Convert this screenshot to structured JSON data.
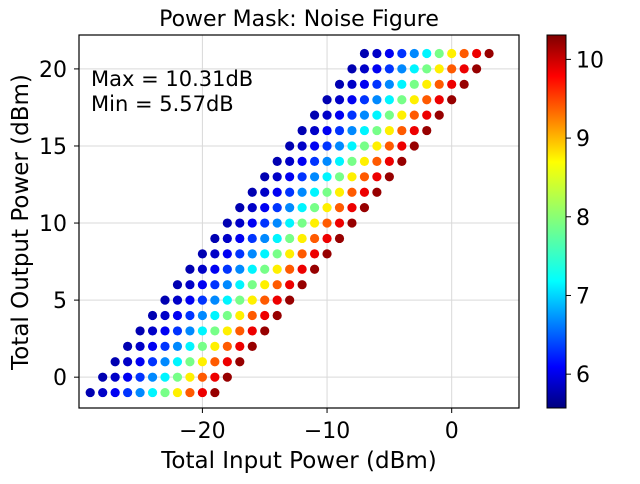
{
  "chart_data": {
    "type": "scatter",
    "title": "Power Mask: Noise Figure",
    "xlabel": "Total Input Power (dBm)",
    "ylabel": "Total Output Power (dBm)",
    "xlim": [
      -29.9,
      5.4
    ],
    "ylim": [
      -2.0,
      22.2
    ],
    "x_ticks": [
      -20,
      -10,
      0
    ],
    "x_tick_labels": [
      "−20",
      "−10",
      "0"
    ],
    "y_ticks": [
      0,
      5,
      10,
      15,
      20
    ],
    "y_tick_labels": [
      "0",
      "5",
      "10",
      "15",
      "20"
    ],
    "grid": true,
    "annotation": [
      "Max = 10.31dB",
      "Min = 5.57dB"
    ],
    "colorbar": {
      "colormap": "jet",
      "range": [
        5.57,
        10.31
      ],
      "ticks": [
        6,
        7,
        8,
        9,
        10
      ],
      "tick_labels": [
        "6",
        "7",
        "8",
        "9",
        "10"
      ]
    },
    "grid_rule": {
      "description": "Points at output y = -1..21 dBm (step 1); for each row, input x runs from y - 28 to y - 18 in steps of 1 dBm (11 points per row); color value rises left to right along each row.",
      "y_values": [
        -1,
        0,
        1,
        2,
        3,
        4,
        5,
        6,
        7,
        8,
        9,
        10,
        11,
        12,
        13,
        14,
        15,
        16,
        17,
        18,
        19,
        20,
        21
      ],
      "row_offset_from": -28,
      "row_offset_to": -18,
      "row_nf_values": [
        5.8,
        5.9,
        6.1,
        6.4,
        6.8,
        7.3,
        7.9,
        8.6,
        9.3,
        9.8,
        10.2
      ]
    }
  }
}
